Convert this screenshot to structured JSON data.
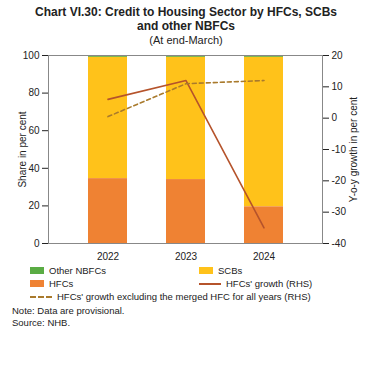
{
  "chart_data": {
    "type": "bar",
    "stacked": true,
    "title": "Chart VI.30: Credit to Housing Sector by HFCs, SCBs and other NBFCs",
    "subtitle": "(At end-March)",
    "categories": [
      "2022",
      "2023",
      "2024"
    ],
    "y_label": "Share in per cent",
    "y2_label": "Y-o-y growth in per cent",
    "ylim": [
      0,
      100
    ],
    "yticks": [
      0,
      20,
      40,
      60,
      80,
      100
    ],
    "y2lim": [
      -40,
      20
    ],
    "y2ticks": [
      -40,
      -30,
      -20,
      -10,
      0,
      10,
      20
    ],
    "series": [
      {
        "name": "Other NBFCs",
        "type": "bar",
        "color": "#5aac44",
        "values": [
          1.0,
          1.0,
          1.0
        ]
      },
      {
        "name": "SCBs",
        "type": "bar",
        "color": "#ffc21a",
        "values": [
          64.5,
          65.0,
          79.5
        ]
      },
      {
        "name": "HFCs",
        "type": "bar",
        "color": "#ef8233",
        "values": [
          34.5,
          34.0,
          19.5
        ]
      },
      {
        "name": "HFCs' growth (RHS)",
        "type": "line",
        "axis": "y2",
        "color": "#b5532b",
        "line_style": "solid",
        "values": [
          6.0,
          12.0,
          -35.0
        ]
      },
      {
        "name": "HFCs' growth excluding the merged HFC for all years (RHS)",
        "type": "line",
        "axis": "y2",
        "color": "#a97a2c",
        "line_style": "dashed",
        "values": [
          0.5,
          11.0,
          12.0
        ]
      }
    ],
    "notes": [
      "Note: Data are provisional.",
      "Source: NHB."
    ]
  }
}
